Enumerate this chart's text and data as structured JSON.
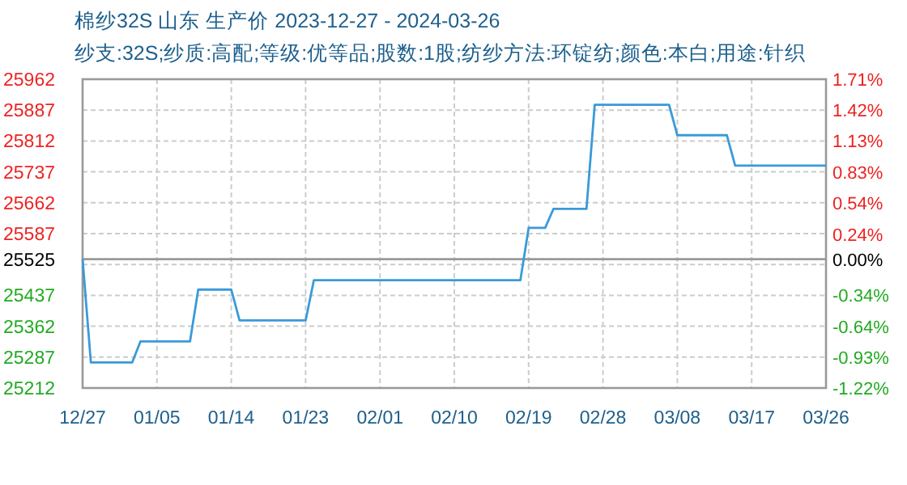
{
  "chart_data": {
    "type": "line",
    "title": "棉纱32S 山东 生产价 2023-12-27 - 2024-03-26",
    "subtitle": "纱支:32S;纱质:高配;等级:优等品;股数:1股;纺纱方法:环锭纺;颜色:本白;用途:针织",
    "x": [
      "2023-12-27",
      "2023-12-28",
      "2024-01-02",
      "2024-01-03",
      "2024-01-09",
      "2024-01-10",
      "2024-01-14",
      "2024-01-15",
      "2024-01-23",
      "2024-01-24",
      "2024-02-18",
      "2024-02-19",
      "2024-02-21",
      "2024-02-22",
      "2024-02-26",
      "2024-02-27",
      "2024-03-07",
      "2024-03-08",
      "2024-03-14",
      "2024-03-15",
      "2024-03-26"
    ],
    "series": [
      {
        "color": "#3a9ad9",
        "values": [
          25525,
          25274,
          25274,
          25325,
          25325,
          25451,
          25451,
          25376,
          25376,
          25474,
          25474,
          25601,
          25601,
          25647,
          25647,
          25900,
          25900,
          25826,
          25826,
          25752,
          25752
        ]
      }
    ],
    "xlim": [
      "2023-12-27",
      "2024-03-26"
    ],
    "xticks": [
      {
        "value": "2023-12-27",
        "label": "12/27"
      },
      {
        "value": "2024-01-05",
        "label": "01/05"
      },
      {
        "value": "2024-01-14",
        "label": "01/14"
      },
      {
        "value": "2024-01-23",
        "label": "01/23"
      },
      {
        "value": "2024-02-01",
        "label": "02/01"
      },
      {
        "value": "2024-02-10",
        "label": "02/10"
      },
      {
        "value": "2024-02-19",
        "label": "02/19"
      },
      {
        "value": "2024-02-28",
        "label": "02/28"
      },
      {
        "value": "2024-03-08",
        "label": "03/08"
      },
      {
        "value": "2024-03-17",
        "label": "03/17"
      },
      {
        "value": "2024-03-26",
        "label": "03/26"
      }
    ],
    "ylim": [
      25212,
      25962
    ],
    "yticks": [
      25212,
      25287,
      25362,
      25437,
      {
        "value": 25512,
        "label": null
      },
      25525,
      25587,
      25662,
      25737,
      25812,
      25887,
      25962
    ],
    "y2lim": [
      -1.22,
      1.71
    ],
    "y2ticks": [
      {
        "value": -1.22,
        "label": "-1.22%"
      },
      {
        "value": -0.93,
        "label": "-0.93%"
      },
      {
        "value": -0.64,
        "label": "-0.64%"
      },
      {
        "value": -0.34,
        "label": "-0.34%"
      },
      {
        "value": 0,
        "label": "0.00%"
      },
      {
        "value": 0.24,
        "label": "0.24%"
      },
      {
        "value": 0.54,
        "label": "0.54%"
      },
      {
        "value": 0.83,
        "label": "0.83%"
      },
      {
        "value": 1.13,
        "label": "1.13%"
      },
      {
        "value": 1.42,
        "label": "1.42%"
      },
      {
        "value": 1.71,
        "label": "1.71%"
      }
    ],
    "ref_lines": [
      {
        "axis": "y",
        "value": 25525,
        "color": "#999999"
      }
    ],
    "grid": true,
    "marker": "none",
    "line_style": "solid"
  }
}
